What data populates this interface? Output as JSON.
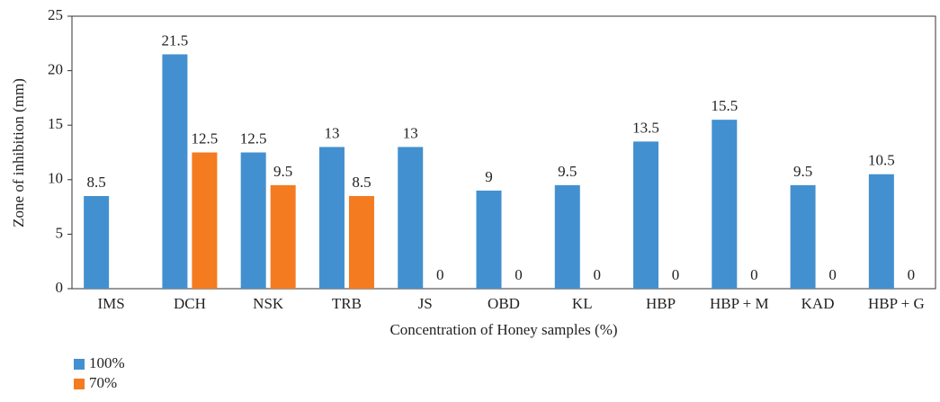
{
  "chart_data": {
    "type": "bar",
    "x_label": "Concentration of Honey samples (%)",
    "y_label": "Zone of inhibition (mm)",
    "categories": [
      "IMS",
      "DCH",
      "NSK",
      "TRB",
      "JS",
      "OBD",
      "KL",
      "HBP",
      "HBP + M",
      "KAD",
      "HBP + G"
    ],
    "series": [
      {
        "name": "100%",
        "color": "#4390d0",
        "values": [
          8.5,
          21.5,
          12.5,
          13,
          13,
          9,
          9.5,
          13.5,
          15.5,
          9.5,
          10.5
        ]
      },
      {
        "name": "70%",
        "color": "#f47b20",
        "values": [
          null,
          12.5,
          9.5,
          8.5,
          0,
          0,
          0,
          0,
          0,
          0,
          0
        ]
      }
    ],
    "ylim": [
      0,
      25
    ],
    "yticks": [
      0,
      5,
      10,
      15,
      20,
      25
    ],
    "grid": false,
    "legend": "bottom-left"
  }
}
